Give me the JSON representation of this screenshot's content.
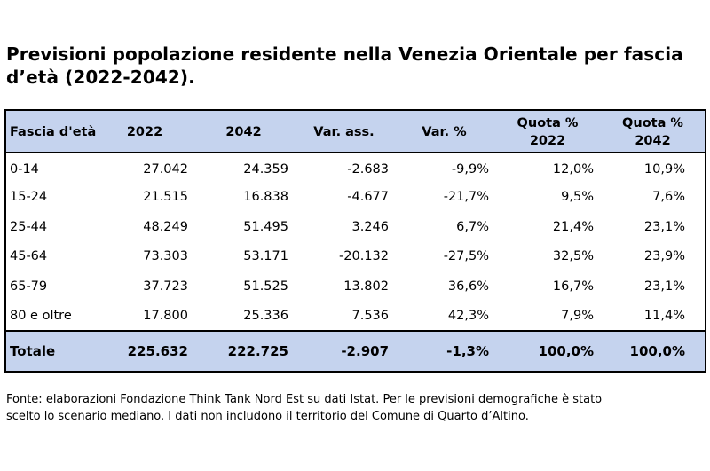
{
  "title_line1": "Previsioni popolazione residente nella Venezia Orientale per fascia",
  "title_line2": "d’età (2022-2042).",
  "table": {
    "headers": [
      "Fascia d'età",
      "2022",
      "2042",
      "Var. ass.",
      "Var. %",
      "Quota % 2022",
      "Quota % 2042"
    ],
    "rows": [
      [
        "0-14",
        "27.042",
        "24.359",
        "-2.683",
        "-9,9%",
        "12,0%",
        "10,9%"
      ],
      [
        "15-24",
        "21.515",
        "16.838",
        "-4.677",
        "-21,7%",
        "9,5%",
        "7,6%"
      ],
      [
        "25-44",
        "48.249",
        "51.495",
        "3.246",
        "6,7%",
        "21,4%",
        "23,1%"
      ],
      [
        "45-64",
        "73.303",
        "53.171",
        "-20.132",
        "-27,5%",
        "32,5%",
        "23,9%"
      ],
      [
        "65-79",
        "37.723",
        "51.525",
        "13.802",
        "36,6%",
        "16,7%",
        "23,1%"
      ],
      [
        "80 e oltre",
        "17.800",
        "25.336",
        "7.536",
        "42,3%",
        "7,9%",
        "11,4%"
      ]
    ],
    "total": [
      "Totale",
      "225.632",
      "222.725",
      "-2.907",
      "-1,3%",
      "100,0%",
      "100,0%"
    ]
  },
  "source_line1": "Fonte: elaborazioni Fondazione Think Tank Nord Est su dati Istat. Per le previsioni demografiche è stato",
  "source_line2": "scelto lo scenario mediano. I dati non includono il territorio del Comune di Quarto d’Altino.",
  "colors": {
    "header_background": "#c5d3ee",
    "border": "#000000"
  }
}
